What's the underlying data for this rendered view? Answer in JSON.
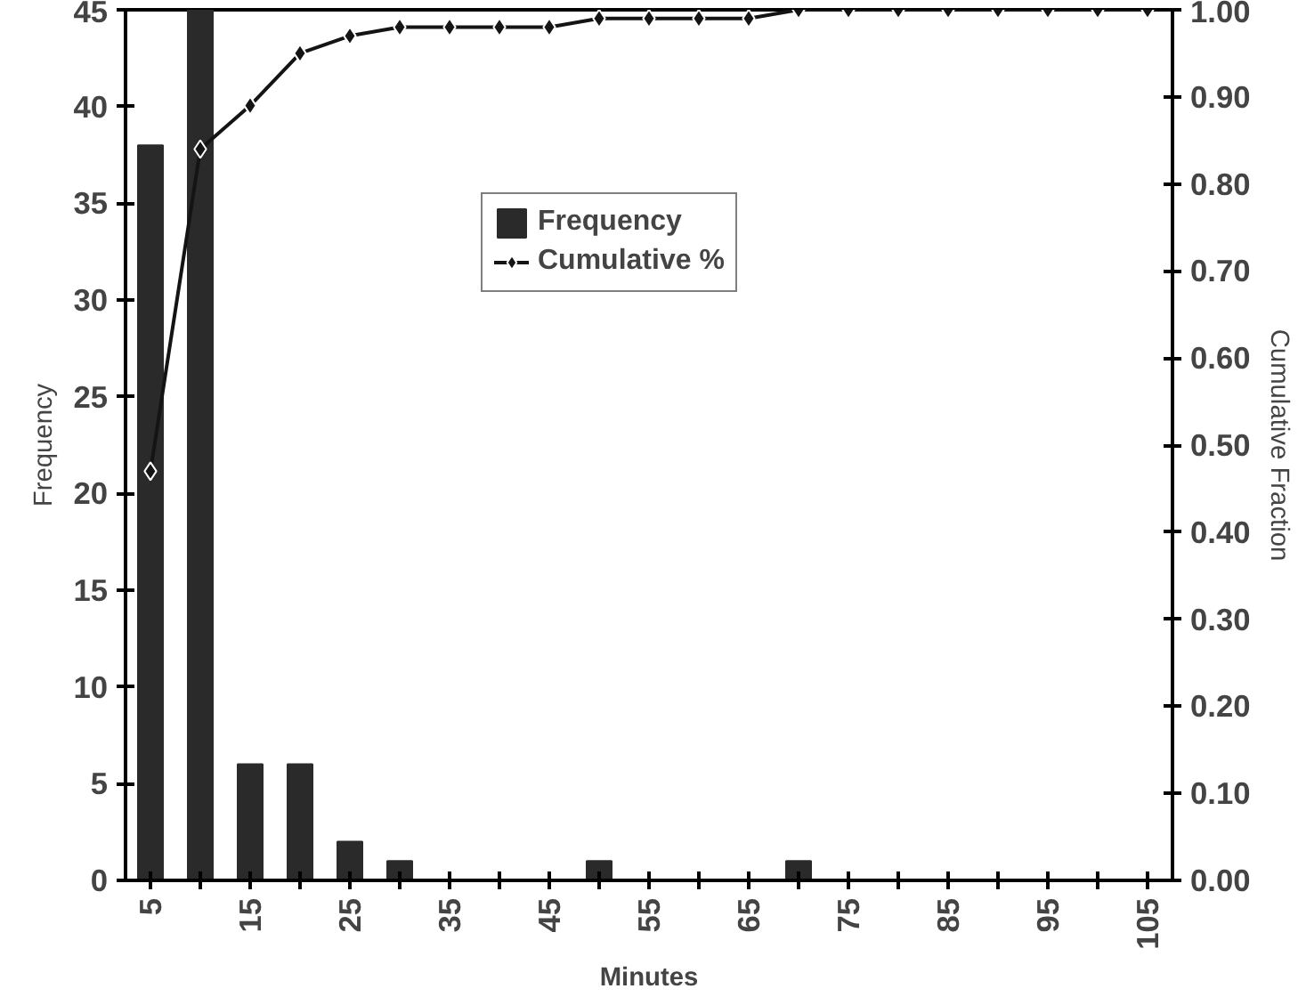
{
  "chart_data": {
    "type": "bar",
    "xlabel": "Minutes",
    "ylabel": "Frequency",
    "y2label": "Cumulative Fraction",
    "categories": [
      "5",
      null,
      "15",
      null,
      "25",
      null,
      "35",
      null,
      "45",
      null,
      "55",
      null,
      "65",
      null,
      "75",
      null,
      "85",
      null,
      "95",
      null,
      "105"
    ],
    "series": [
      {
        "name": "Frequency",
        "color": "#2a2a2a",
        "values": [
          38,
          45,
          6,
          6,
          2,
          1,
          0,
          0,
          0,
          1,
          0,
          0,
          0,
          1,
          0,
          0,
          0,
          0,
          0,
          0,
          0
        ]
      },
      {
        "name": "Cumulative %",
        "type": "line",
        "axis": "y2",
        "color": "#141414",
        "marker": "diamond",
        "values": [
          0.47,
          0.84,
          0.89,
          0.95,
          0.97,
          0.98,
          0.98,
          0.98,
          0.98,
          0.99,
          0.99,
          0.99,
          0.99,
          1.0,
          1.0,
          1.0,
          1.0,
          1.0,
          1.0,
          1.0,
          1.0
        ]
      }
    ],
    "ylim": [
      0,
      45
    ],
    "yticks": [
      0,
      5,
      10,
      15,
      20,
      25,
      30,
      35,
      40,
      45
    ],
    "y2lim": [
      0,
      1
    ],
    "y2ticks": [
      {
        "value": 0,
        "label": "0.00"
      },
      {
        "value": 0.1,
        "label": "0.10"
      },
      {
        "value": 0.2,
        "label": "0.20"
      },
      {
        "value": 0.3,
        "label": "0.30"
      },
      {
        "value": 0.4,
        "label": "0.40"
      },
      {
        "value": 0.5,
        "label": "0.50"
      },
      {
        "value": 0.6,
        "label": "0.60"
      },
      {
        "value": 0.7,
        "label": "0.70"
      },
      {
        "value": 0.8,
        "label": "0.80"
      },
      {
        "value": 0.9,
        "label": "0.90"
      },
      {
        "value": 1,
        "label": "1.00"
      }
    ],
    "legend": "top",
    "grid": false
  }
}
